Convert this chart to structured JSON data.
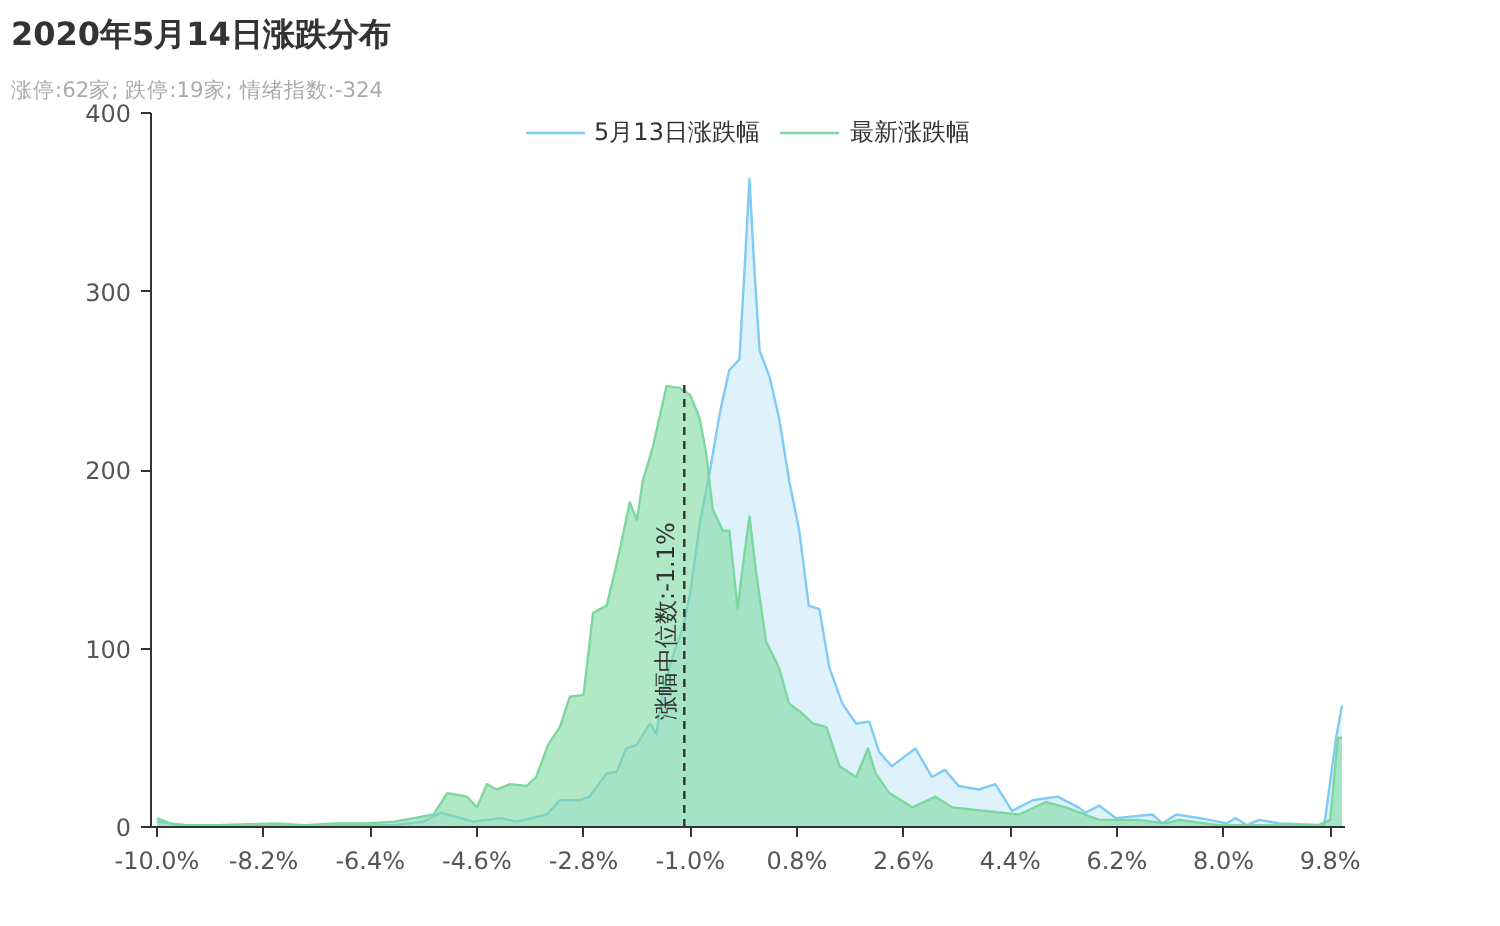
{
  "chart_data": {
    "type": "area",
    "title": "2020年5月14日涨跌分布",
    "subtitle": "涨停:62家; 跌停:19家; 情绪指数:-324",
    "legend": "top",
    "grid": false,
    "xlim": [
      -10.1,
      10.05
    ],
    "ylim": [
      0,
      400
    ],
    "yticks": [
      0,
      100,
      200,
      300,
      400
    ],
    "xticks": [
      {
        "value": -10,
        "label": "-10.0%"
      },
      {
        "value": -8.2,
        "label": "-8.2%"
      },
      {
        "value": -6.4,
        "label": "-6.4%"
      },
      {
        "value": -4.6,
        "label": "-4.6%"
      },
      {
        "value": -2.8,
        "label": "-2.8%"
      },
      {
        "value": -1.0,
        "label": "-1.0%"
      },
      {
        "value": 0.8,
        "label": "0.8%"
      },
      {
        "value": 2.6,
        "label": "2.6%"
      },
      {
        "value": 4.4,
        "label": "4.4%"
      },
      {
        "value": 6.2,
        "label": "6.2%"
      },
      {
        "value": 8.0,
        "label": "8.0%"
      },
      {
        "value": 9.8,
        "label": "9.8%"
      }
    ],
    "ref_lines": [
      {
        "axis": "x",
        "value": -1.1,
        "label": "涨幅中位数:-1.1%",
        "color": "#333333",
        "line_style": "dashed"
      }
    ],
    "series": [
      {
        "name": "5月13日涨跌幅",
        "color": "#7ecbf5",
        "x": [
          -10,
          -9.5,
          -9,
          -8,
          -7,
          -6,
          -5.5,
          -5.2,
          -4.66,
          -4.2,
          -3.93,
          -3.42,
          -3.2,
          -2.86,
          -2.7,
          -2.41,
          -2.24,
          -2.08,
          -1.9,
          -1.68,
          -1.57,
          -1.46,
          -1.29,
          -1.12,
          -1,
          -0.84,
          -0.67,
          -0.5,
          -0.34,
          -0.17,
          -0.08,
          0,
          0.08,
          0.17,
          0.34,
          0.5,
          0.67,
          0.84,
          1,
          1.18,
          1.35,
          1.57,
          1.8,
          2.02,
          2.19,
          2.4,
          2.8,
          3.08,
          3.3,
          3.53,
          3.87,
          4.15,
          4.43,
          4.78,
          5.2,
          5.55,
          5.67,
          5.9,
          6.18,
          6.8,
          6.97,
          7.2,
          7.6,
          8.05,
          8.2,
          8.4,
          8.6,
          8.95,
          9.7,
          9.9,
          10
        ],
        "values": [
          3,
          1,
          1,
          1,
          1,
          1,
          3,
          8,
          3,
          5,
          3,
          7,
          15,
          15,
          17,
          30,
          31,
          44,
          46,
          58,
          52,
          77,
          96,
          112,
          131,
          170,
          199,
          232,
          256,
          262,
          314,
          363,
          314,
          267,
          252,
          229,
          194,
          166,
          124,
          122,
          89,
          69,
          58,
          59,
          42,
          34,
          44,
          28,
          32,
          23,
          21,
          24,
          9,
          15,
          17,
          11,
          8,
          12,
          5,
          7,
          2,
          7,
          5,
          2,
          5,
          1,
          4,
          2,
          1,
          50,
          68
        ]
      },
      {
        "name": "最新涨跌幅",
        "color": "#7dd8a0",
        "x": [
          -10,
          -9.7,
          -9,
          -8,
          -7.5,
          -7,
          -6.5,
          -6,
          -5.67,
          -5.33,
          -5.1,
          -4.77,
          -4.6,
          -4.43,
          -4.27,
          -4.04,
          -3.76,
          -3.6,
          -3.4,
          -3.2,
          -3.03,
          -2.8,
          -2.64,
          -2.41,
          -2.19,
          -2.02,
          -1.9,
          -1.8,
          -1.63,
          -1.4,
          -1.18,
          -1,
          -0.84,
          -0.73,
          -0.62,
          -0.45,
          -0.34,
          -0.2,
          -0.11,
          0,
          0.11,
          0.28,
          0.5,
          0.67,
          0.84,
          1.07,
          1.3,
          1.52,
          1.8,
          2,
          2.13,
          2.36,
          2.75,
          3.14,
          3.42,
          3.99,
          4.55,
          5,
          5.34,
          5.9,
          6.57,
          7.02,
          7.25,
          7.92,
          8.7,
          9.6,
          9.8,
          9.93,
          10
        ],
        "values": [
          5,
          1,
          1,
          2,
          1,
          2,
          2,
          3,
          5,
          7,
          19,
          17,
          11,
          24,
          21,
          24,
          23,
          28,
          46,
          56,
          73,
          74,
          120,
          124,
          155,
          182,
          172,
          194,
          213,
          247,
          246,
          242,
          229,
          209,
          178,
          166,
          166,
          122,
          147,
          174,
          143,
          104,
          89,
          69,
          65,
          58,
          56,
          34,
          28,
          44,
          30,
          19,
          11,
          17,
          11,
          9,
          7,
          14,
          11,
          4,
          4,
          2,
          4,
          1,
          1,
          1,
          4,
          50,
          50
        ]
      }
    ]
  }
}
